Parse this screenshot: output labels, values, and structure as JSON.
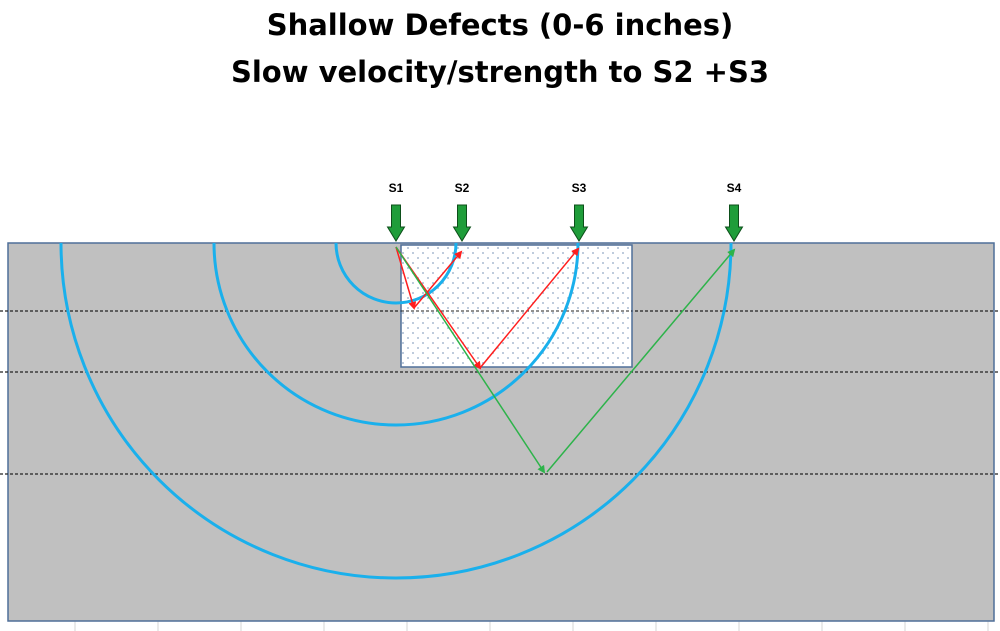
{
  "title": {
    "line1": "Shallow Defects (0-6 inches)",
    "line2": "Slow velocity/strength to S2 +S3"
  },
  "sensors": [
    {
      "label": "S1"
    },
    {
      "label": "S2"
    },
    {
      "label": "S3"
    },
    {
      "label": "S4"
    }
  ],
  "colors": {
    "slab": "#c0c0c0",
    "slab_border": "#4f6f99",
    "defect_fill": "#ffffff",
    "defect_dots": "#8fa6c4",
    "wavefront": "#1ab0ec",
    "ray_red": "#ff1e1e",
    "ray_green": "#2db34a",
    "sensor_arrow": "#1f9d3a",
    "layer_line": "#222222"
  }
}
